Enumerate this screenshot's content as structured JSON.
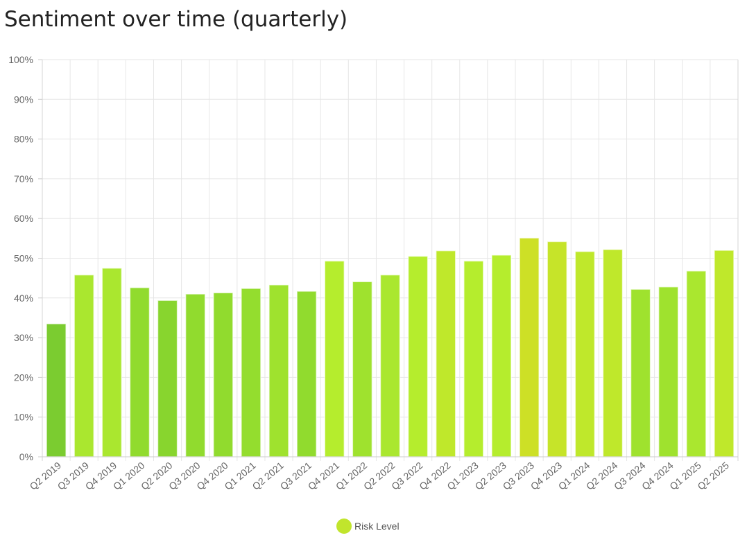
{
  "title": "Sentiment over time (quarterly)",
  "chart_data": {
    "type": "bar",
    "categories": [
      "Q2 2019",
      "Q3 2019",
      "Q4 2019",
      "Q1 2020",
      "Q2 2020",
      "Q3 2020",
      "Q4 2020",
      "Q1 2021",
      "Q2 2021",
      "Q3 2021",
      "Q4 2021",
      "Q1 2022",
      "Q2 2022",
      "Q3 2022",
      "Q4 2022",
      "Q1 2023",
      "Q2 2023",
      "Q3 2023",
      "Q4 2023",
      "Q1 2024",
      "Q2 2024",
      "Q3 2024",
      "Q4 2024",
      "Q1 2025",
      "Q2 2025"
    ],
    "series": [
      {
        "name": "Risk Level",
        "values": [
          33.5,
          45.8,
          47.5,
          42.6,
          39.4,
          41.0,
          41.3,
          42.4,
          43.3,
          41.7,
          49.3,
          44.1,
          45.8,
          50.5,
          51.9,
          49.3,
          50.8,
          55.1,
          54.2,
          51.7,
          52.2,
          42.2,
          42.8,
          46.8,
          52.0
        ]
      }
    ],
    "bar_colors": [
      "#7bcc30",
      "#aae72f",
      "#aae72f",
      "#91db2e",
      "#88d52e",
      "#91db2e",
      "#91db2e",
      "#94dd2e",
      "#9fe22e",
      "#91db2e",
      "#b5ed2d",
      "#9fe22e",
      "#aae72f",
      "#b5ed2d",
      "#bfe82b",
      "#b5ed2d",
      "#b5ed2d",
      "#cde026",
      "#c6e429",
      "#bfe82b",
      "#bfe82b",
      "#9fe22e",
      "#9fe22e",
      "#aae72f",
      "#bfe82b"
    ],
    "y_ticks": [
      "0%",
      "10%",
      "20%",
      "30%",
      "40%",
      "50%",
      "60%",
      "70%",
      "80%",
      "90%",
      "100%"
    ],
    "ylim": [
      0,
      100
    ],
    "y_unit": "%",
    "grid": true,
    "legend": {
      "position": "bottom",
      "label": "Risk Level",
      "color": "#c1e52c"
    },
    "xlabel": "",
    "ylabel": ""
  }
}
